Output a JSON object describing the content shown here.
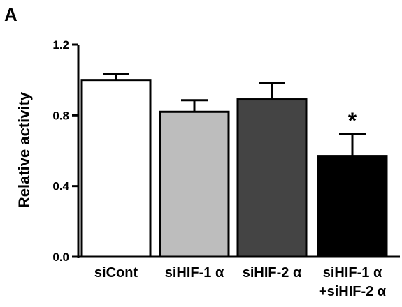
{
  "panel_label": "A",
  "chart_data": {
    "type": "bar",
    "categories": [
      [
        "siCont"
      ],
      [
        "siHIF-1 α"
      ],
      [
        "siHIF-2 α"
      ],
      [
        "siHIF-1 α",
        "+siHIF-2 α"
      ]
    ],
    "values": [
      1.0,
      0.82,
      0.89,
      0.57
    ],
    "errors": [
      0.035,
      0.065,
      0.095,
      0.125
    ],
    "colors": [
      "#ffffff",
      "#bdbdbd",
      "#444444",
      "#000000"
    ],
    "annotations": [
      "",
      "",
      "",
      "*"
    ],
    "ylabel": "Relative activity",
    "ylim": [
      0,
      1.2
    ],
    "yticks": [
      0.0,
      0.4,
      0.8,
      1.2
    ],
    "ytick_labels": [
      "0.0",
      "0.4",
      "0.8",
      "1.2"
    ],
    "grid": false
  }
}
